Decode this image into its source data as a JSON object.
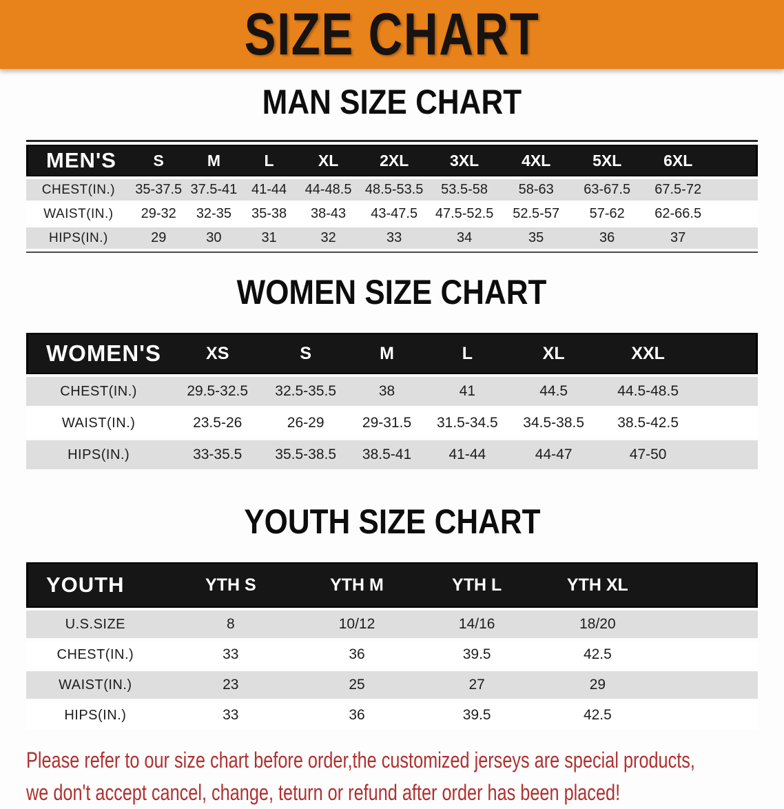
{
  "banner": {
    "title": "SIZE CHART",
    "bg_color": "#E8821B"
  },
  "men": {
    "heading": "MAN SIZE CHART",
    "group_label": "MEN'S",
    "sizes": [
      "S",
      "M",
      "L",
      "XL",
      "2XL",
      "3XL",
      "4XL",
      "5XL",
      "6XL"
    ],
    "rows": [
      {
        "label": "CHEST(IN.)",
        "values": [
          "35-37.5",
          "37.5-41",
          "41-44",
          "44-48.5",
          "48.5-53.5",
          "53.5-58",
          "58-63",
          "63-67.5",
          "67.5-72"
        ]
      },
      {
        "label": "WAIST(IN.)",
        "values": [
          "29-32",
          "32-35",
          "35-38",
          "38-43",
          "43-47.5",
          "47.5-52.5",
          "52.5-57",
          "57-62",
          "62-66.5"
        ]
      },
      {
        "label": "HIPS(IN.)",
        "values": [
          "29",
          "30",
          "31",
          "32",
          "33",
          "34",
          "35",
          "36",
          "37"
        ]
      }
    ]
  },
  "women": {
    "heading": "WOMEN SIZE CHART",
    "group_label": "WOMEN'S",
    "sizes": [
      "XS",
      "S",
      "M",
      "L",
      "XL",
      "XXL"
    ],
    "rows": [
      {
        "label": "CHEST(IN.)",
        "values": [
          "29.5-32.5",
          "32.5-35.5",
          "38",
          "41",
          "44.5",
          "44.5-48.5"
        ]
      },
      {
        "label": "WAIST(IN.)",
        "values": [
          "23.5-26",
          "26-29",
          "29-31.5",
          "31.5-34.5",
          "34.5-38.5",
          "38.5-42.5"
        ]
      },
      {
        "label": "HIPS(IN.)",
        "values": [
          "33-35.5",
          "35.5-38.5",
          "38.5-41",
          "41-44",
          "44-47",
          "47-50"
        ]
      }
    ]
  },
  "youth": {
    "heading": "YOUTH SIZE CHART",
    "group_label": "YOUTH",
    "sizes": [
      "YTH S",
      "YTH M",
      "YTH L",
      "YTH XL"
    ],
    "rows": [
      {
        "label": "U.S.SIZE",
        "values": [
          "8",
          "10/12",
          "14/16",
          "18/20"
        ]
      },
      {
        "label": "CHEST(IN.)",
        "values": [
          "33",
          "36",
          "39.5",
          "42.5"
        ]
      },
      {
        "label": "WAIST(IN.)",
        "values": [
          "23",
          "25",
          "27",
          "29"
        ]
      },
      {
        "label": "HIPS(IN.)",
        "values": [
          "33",
          "36",
          "39.5",
          "42.5"
        ]
      }
    ]
  },
  "disclaimer": {
    "line1": "Please refer to our size chart before order,the customized jerseys are special products,",
    "line2": "we don't accept cancel, change, teturn or refund after order has been placed!",
    "color": "#B03030"
  }
}
